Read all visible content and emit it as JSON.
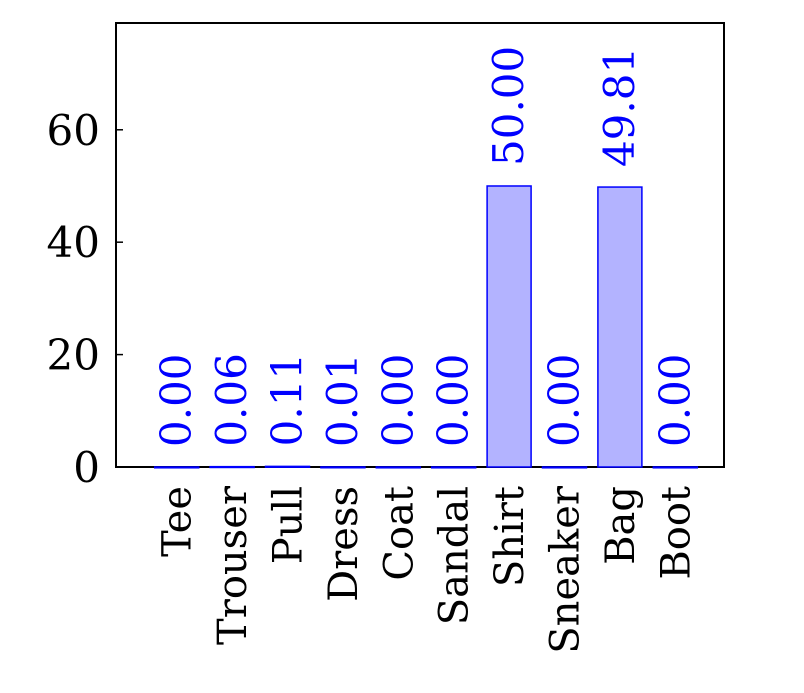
{
  "chart_data": {
    "type": "bar",
    "categories": [
      "Tee",
      "Trouser",
      "Pull",
      "Dress",
      "Coat",
      "Sandal",
      "Shirt",
      "Sneaker",
      "Bag",
      "Boot"
    ],
    "values": [
      0.0,
      0.06,
      0.11,
      0.01,
      0.0,
      0.0,
      50.0,
      0.0,
      49.81,
      0.0
    ],
    "value_labels": [
      "0.00",
      "0.06",
      "0.11",
      "0.01",
      "0.00",
      "0.00",
      "50.00",
      "0.00",
      "49.81",
      "0.00"
    ],
    "ylim": [
      0,
      79
    ],
    "yticks": [
      0,
      20,
      40,
      60
    ],
    "ytick_labels": [
      "0",
      "20",
      "40",
      "60"
    ],
    "grid": false,
    "colors": {
      "bar_fill": "#b3b3ff",
      "bar_edge": "#0000ff",
      "value_label": "#0000ff",
      "axis": "#000000"
    }
  }
}
